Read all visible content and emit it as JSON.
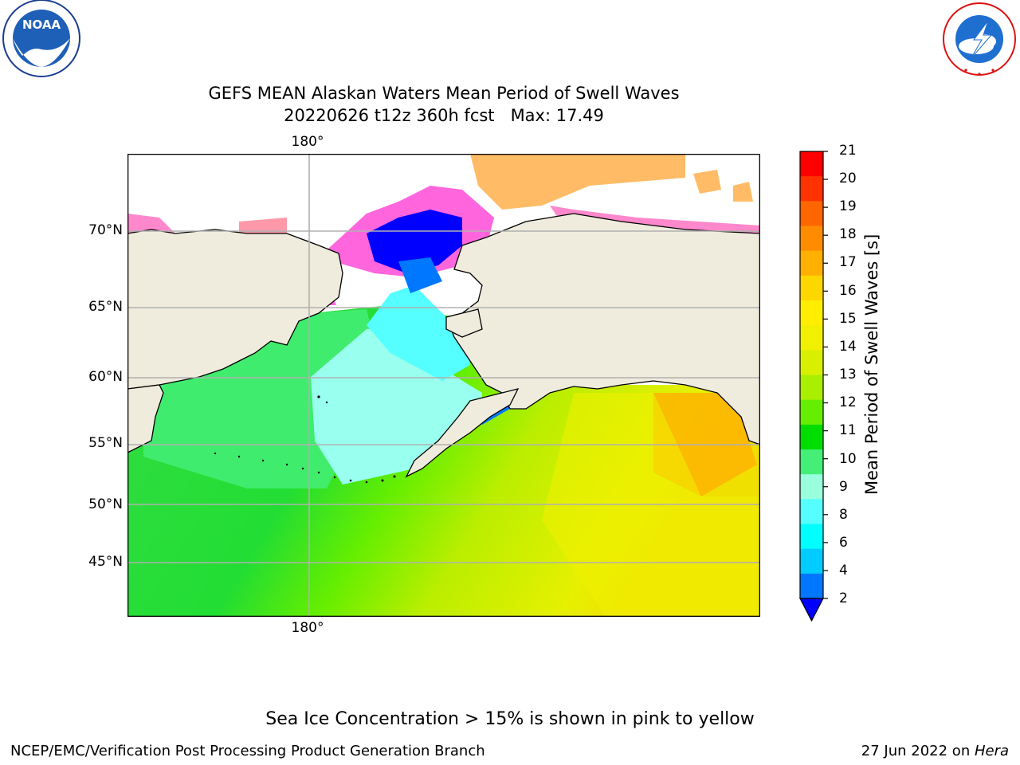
{
  "title": {
    "line1": "GEFS MEAN Alaskan Waters Mean Period of Swell Waves",
    "line2": "20220626 t12z 360h fcst   Max: 17.49"
  },
  "logos": {
    "noaa_text": "NOAA",
    "noaa_ring": "NATIONAL OCEANIC AND ATMOSPHERIC ADMINISTRATION · U.S. DEPARTMENT OF COMMERCE",
    "nws_ring": "NATIONAL WEATHER SERVICE"
  },
  "map": {
    "lon_label_top": "180°",
    "lon_label_bottom": "180°",
    "lat_labels": [
      "70°N",
      "65°N",
      "60°N",
      "55°N",
      "50°N",
      "45°N"
    ],
    "land_color": "#efecdd",
    "coast_color": "#000000",
    "grid_color": "#b0b0b0"
  },
  "colorbar": {
    "label": "Mean Period of Swell Waves [s]",
    "ticks": [
      "21",
      "20",
      "19",
      "18",
      "17",
      "16",
      "15",
      "14",
      "13",
      "12",
      "11",
      "10",
      "9",
      "8",
      "6",
      "4",
      "2"
    ],
    "colors_top_to_bottom": [
      "#ff0000",
      "#ff3300",
      "#ff6600",
      "#ff8c00",
      "#ffb000",
      "#ffd700",
      "#ffee00",
      "#f0f000",
      "#d8f000",
      "#aaee00",
      "#66ee00",
      "#00dd00",
      "#44ee77",
      "#99ffdd",
      "#55ffff",
      "#00ffff",
      "#00ccff",
      "#0077ff",
      "#0000ff"
    ]
  },
  "caption": "Sea Ice Concentration > 15% is shown in pink to yellow",
  "footer": {
    "left": "NCEP/EMC/Verification Post Processing Product Generation Branch",
    "right_date": "27 Jun 2022 on ",
    "right_machine": "Hera"
  }
}
